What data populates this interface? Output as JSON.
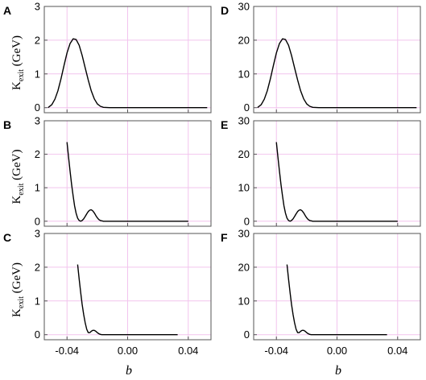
{
  "figure": {
    "ylabel": {
      "main": "K",
      "sub": "exit",
      "unit": " (GeV)"
    },
    "xlabel": "b"
  },
  "chart_data": [
    {
      "type": "line",
      "panel": "A",
      "xlim": [
        -0.055,
        0.055
      ],
      "ylim": [
        -0.15,
        3.0
      ],
      "xticks": [
        -0.04,
        0.0,
        0.04
      ],
      "xtick_labels": [
        "-0.04",
        "0.00",
        "0.04"
      ],
      "yticks": [
        0,
        1,
        2,
        3
      ],
      "ytick_labels": [
        "0",
        "1",
        "2",
        "3"
      ],
      "grid": true,
      "x": [
        -0.0525,
        -0.05,
        -0.048,
        -0.046,
        -0.044,
        -0.042,
        -0.04,
        -0.038,
        -0.036,
        -0.034,
        -0.032,
        -0.03,
        -0.028,
        -0.026,
        -0.024,
        -0.022,
        -0.02,
        -0.018,
        -0.016,
        -0.012,
        -0.008,
        0.0,
        0.01,
        0.02,
        0.03,
        0.04,
        0.0525
      ],
      "y": [
        0.0,
        0.09,
        0.25,
        0.5,
        0.85,
        1.25,
        1.62,
        1.9,
        2.04,
        2.02,
        1.85,
        1.55,
        1.18,
        0.82,
        0.5,
        0.26,
        0.11,
        0.04,
        0.01,
        0.0,
        0.0,
        0.0,
        0.0,
        0.0,
        0.0,
        0.0,
        0.0
      ]
    },
    {
      "type": "line",
      "panel": "B",
      "xlim": [
        -0.055,
        0.055
      ],
      "ylim": [
        -0.15,
        3.0
      ],
      "xticks": [
        -0.04,
        0.0,
        0.04
      ],
      "xtick_labels": [
        "-0.04",
        "0.00",
        "0.04"
      ],
      "yticks": [
        0,
        1,
        2,
        3
      ],
      "ytick_labels": [
        "0",
        "1",
        "2",
        "3"
      ],
      "grid": true,
      "x": [
        -0.04,
        -0.039,
        -0.038,
        -0.037,
        -0.036,
        -0.035,
        -0.034,
        -0.033,
        -0.032,
        -0.031,
        -0.03,
        -0.029,
        -0.028,
        -0.027,
        -0.026,
        -0.025,
        -0.024,
        -0.023,
        -0.022,
        -0.021,
        -0.02,
        -0.019,
        -0.018,
        -0.017,
        -0.016,
        -0.014,
        -0.01,
        0.0,
        0.01,
        0.02,
        0.03,
        0.04
      ],
      "y": [
        2.36,
        1.92,
        1.5,
        1.1,
        0.76,
        0.46,
        0.24,
        0.09,
        0.02,
        0.0,
        0.02,
        0.07,
        0.14,
        0.22,
        0.29,
        0.33,
        0.34,
        0.31,
        0.25,
        0.17,
        0.1,
        0.05,
        0.02,
        0.01,
        0.0,
        0.0,
        0.0,
        0.0,
        0.0,
        0.0,
        0.0,
        0.0
      ]
    },
    {
      "type": "line",
      "panel": "C",
      "xlim": [
        -0.055,
        0.055
      ],
      "ylim": [
        -0.15,
        3.0
      ],
      "xticks": [
        -0.04,
        0.0,
        0.04
      ],
      "xtick_labels": [
        "-0.04",
        "0.00",
        "0.04"
      ],
      "yticks": [
        0,
        1,
        2,
        3
      ],
      "ytick_labels": [
        "0",
        "1",
        "2",
        "3"
      ],
      "grid": true,
      "x": [
        -0.033,
        -0.032,
        -0.031,
        -0.03,
        -0.029,
        -0.028,
        -0.027,
        -0.026,
        -0.025,
        -0.024,
        -0.023,
        -0.022,
        -0.021,
        -0.02,
        -0.019,
        -0.018,
        -0.017,
        -0.016,
        -0.014,
        -0.01,
        0.0,
        0.01,
        0.02,
        0.033
      ],
      "y": [
        2.08,
        1.65,
        1.25,
        0.9,
        0.6,
        0.35,
        0.16,
        0.06,
        0.06,
        0.1,
        0.13,
        0.13,
        0.1,
        0.06,
        0.03,
        0.01,
        0.0,
        0.0,
        0.0,
        0.0,
        0.0,
        0.0,
        0.0,
        0.0
      ]
    },
    {
      "type": "line",
      "panel": "D",
      "xlim": [
        -0.055,
        0.055
      ],
      "ylim": [
        -1.5,
        30.0
      ],
      "xticks": [
        -0.04,
        0.0,
        0.04
      ],
      "xtick_labels": [
        "-0.04",
        "0.00",
        "0.04"
      ],
      "yticks": [
        0,
        10,
        20,
        30
      ],
      "ytick_labels": [
        "0",
        "10",
        "20",
        "30"
      ],
      "grid": true,
      "x": [
        -0.0525,
        -0.05,
        -0.048,
        -0.046,
        -0.044,
        -0.042,
        -0.04,
        -0.038,
        -0.036,
        -0.034,
        -0.032,
        -0.03,
        -0.028,
        -0.026,
        -0.024,
        -0.022,
        -0.02,
        -0.018,
        -0.016,
        -0.012,
        -0.008,
        0.0,
        0.01,
        0.02,
        0.03,
        0.04,
        0.0525
      ],
      "y": [
        0.0,
        0.9,
        2.5,
        5.0,
        8.5,
        12.5,
        16.2,
        19.0,
        20.4,
        20.2,
        18.5,
        15.5,
        11.8,
        8.2,
        5.0,
        2.6,
        1.1,
        0.4,
        0.1,
        0.0,
        0.0,
        0.0,
        0.0,
        0.0,
        0.0,
        0.0,
        0.0
      ]
    },
    {
      "type": "line",
      "panel": "E",
      "xlim": [
        -0.055,
        0.055
      ],
      "ylim": [
        -1.5,
        30.0
      ],
      "xticks": [
        -0.04,
        0.0,
        0.04
      ],
      "xtick_labels": [
        "-0.04",
        "0.00",
        "0.04"
      ],
      "yticks": [
        0,
        10,
        20,
        30
      ],
      "ytick_labels": [
        "0",
        "10",
        "20",
        "30"
      ],
      "grid": true,
      "x": [
        -0.04,
        -0.039,
        -0.038,
        -0.037,
        -0.036,
        -0.035,
        -0.034,
        -0.033,
        -0.032,
        -0.031,
        -0.03,
        -0.029,
        -0.028,
        -0.027,
        -0.026,
        -0.025,
        -0.024,
        -0.023,
        -0.022,
        -0.021,
        -0.02,
        -0.019,
        -0.018,
        -0.017,
        -0.016,
        -0.014,
        -0.01,
        0.0,
        0.01,
        0.02,
        0.03,
        0.04
      ],
      "y": [
        23.6,
        19.2,
        15.0,
        11.0,
        7.6,
        4.6,
        2.4,
        0.9,
        0.2,
        0.0,
        0.2,
        0.7,
        1.4,
        2.2,
        2.9,
        3.3,
        3.4,
        3.1,
        2.5,
        1.7,
        1.0,
        0.5,
        0.2,
        0.1,
        0.0,
        0.0,
        0.0,
        0.0,
        0.0,
        0.0,
        0.0,
        0.0
      ]
    },
    {
      "type": "line",
      "panel": "F",
      "xlim": [
        -0.055,
        0.055
      ],
      "ylim": [
        -1.5,
        30.0
      ],
      "xticks": [
        -0.04,
        0.0,
        0.04
      ],
      "xtick_labels": [
        "-0.04",
        "0.00",
        "0.04"
      ],
      "yticks": [
        0,
        10,
        20,
        30
      ],
      "ytick_labels": [
        "0",
        "10",
        "20",
        "30"
      ],
      "grid": true,
      "x": [
        -0.033,
        -0.032,
        -0.031,
        -0.03,
        -0.029,
        -0.028,
        -0.027,
        -0.026,
        -0.025,
        -0.024,
        -0.023,
        -0.022,
        -0.021,
        -0.02,
        -0.019,
        -0.018,
        -0.017,
        -0.016,
        -0.014,
        -0.01,
        0.0,
        0.01,
        0.02,
        0.033
      ],
      "y": [
        20.8,
        16.5,
        12.5,
        9.0,
        6.0,
        3.5,
        1.6,
        0.6,
        0.6,
        1.0,
        1.3,
        1.3,
        1.0,
        0.6,
        0.3,
        0.1,
        0.0,
        0.0,
        0.0,
        0.0,
        0.0,
        0.0,
        0.0,
        0.0
      ]
    }
  ],
  "colors": {
    "grid": "#f2c4ee",
    "line": "#000000",
    "frame": "#555555"
  }
}
